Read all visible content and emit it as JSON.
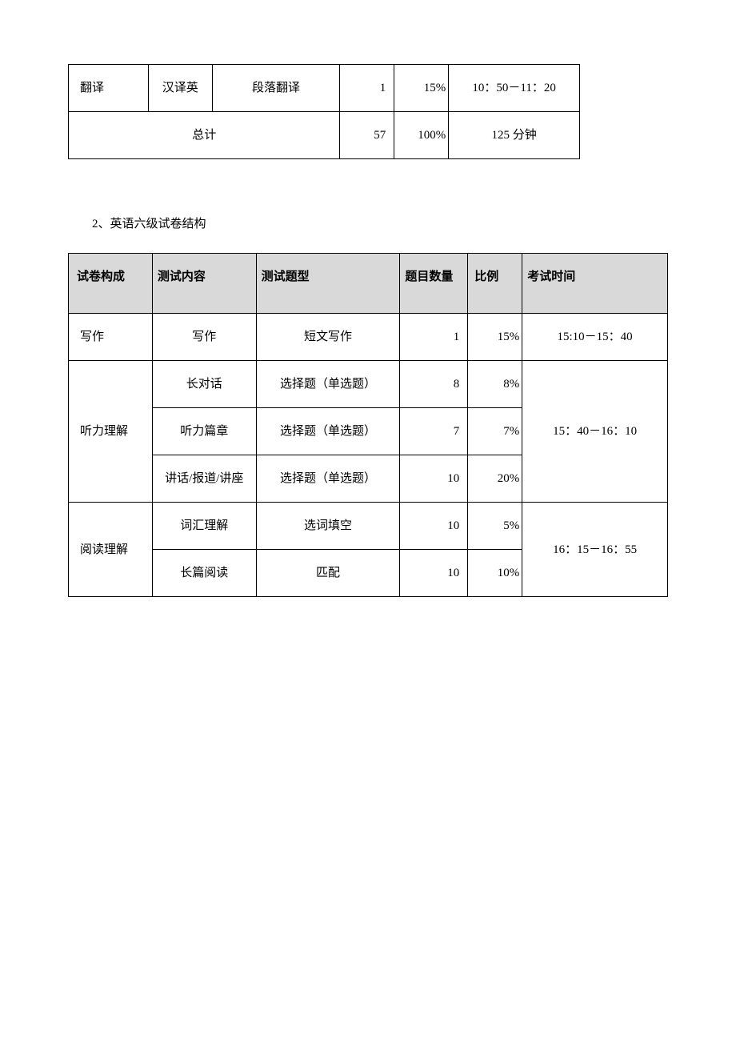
{
  "table1": {
    "rows": [
      {
        "section": "翻译",
        "content": "汉译英",
        "type": "段落翻译",
        "count": "1",
        "ratio": "15%",
        "time": "10：50－11：20"
      }
    ],
    "total": {
      "label": "总计",
      "count": "57",
      "ratio": "100%",
      "time": "125 分钟"
    }
  },
  "section2": {
    "title": "2、英语六级试卷结构",
    "headers": {
      "section": "试卷构成",
      "content": "测试内容",
      "type": "测试题型",
      "count": "题目数量",
      "ratio": "比例",
      "time": "考试时间"
    },
    "writing": {
      "section": "写作",
      "content": "写作",
      "type": "短文写作",
      "count": "1",
      "ratio": "15%",
      "time": "15:10－15：40"
    },
    "listening": {
      "section": "听力理解",
      "time": "15：40－16：10",
      "rows": [
        {
          "content": "长对话",
          "type": "选择题（单选题）",
          "count": "8",
          "ratio": "8%"
        },
        {
          "content": "听力篇章",
          "type": "选择题（单选题）",
          "count": "7",
          "ratio": "7%"
        },
        {
          "content": "讲话/报道/讲座",
          "type": "选择题（单选题）",
          "count": "10",
          "ratio": "20%"
        }
      ]
    },
    "reading": {
      "section": "阅读理解",
      "time": "16：15－16：55",
      "rows": [
        {
          "content": "词汇理解",
          "type": "选词填空",
          "count": "10",
          "ratio": "5%"
        },
        {
          "content": "长篇阅读",
          "type": "匹配",
          "count": "10",
          "ratio": "10%"
        }
      ]
    }
  },
  "style": {
    "text_color": "#000000",
    "background_color": "#ffffff",
    "header_bg_color": "#d9d9d9",
    "border_color": "#000000",
    "font_family": "SimSun",
    "body_font_size": 15,
    "line_height": 2.8
  }
}
